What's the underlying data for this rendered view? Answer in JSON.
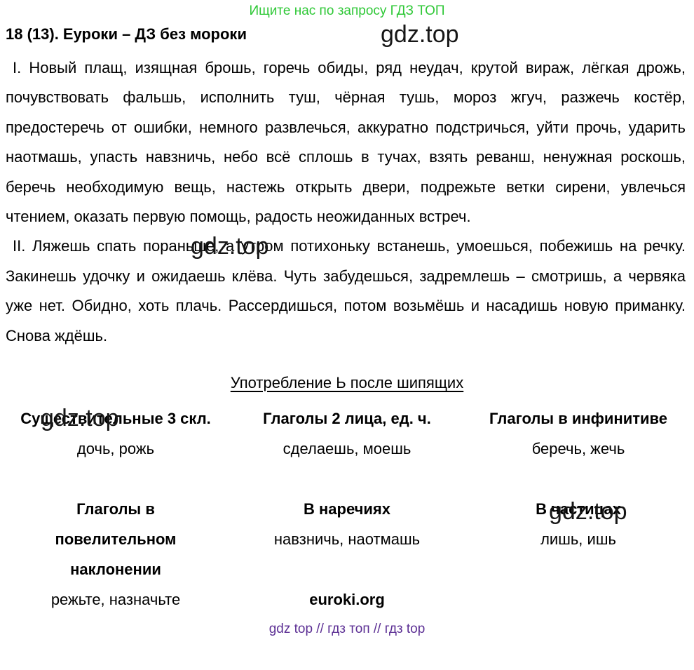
{
  "colors": {
    "promo_green": "#2fc837",
    "tags_purple": "#5c2f94",
    "text_black": "#000000",
    "watermark_gray": "#161616"
  },
  "header": {
    "promo": "Ищите нас по запросу ГДЗ ТОП"
  },
  "title": "18 (13). Еуроки – ДЗ без мороки",
  "watermarks": {
    "w1": "gdz.top",
    "w2": "gdz.top",
    "w3": "gdz.top",
    "w4": "gdz.top"
  },
  "paragraphs": {
    "p1": "I. Новый плащ, изящная брошь, горечь обиды, ряд неудач, крутой вираж, лёгкая дрожь, почувствовать фальшь, исполнить туш, чёрная тушь, мороз жгуч, разжечь костёр, предостеречь от ошибки, немного развлечься, аккуратно подстричься, уйти прочь, ударить наотмашь, упасть навзничь, небо всё сплошь в тучах, взять реванш, ненужная роскошь, беречь необходимую вещь, настежь открыть двери, подрежьте ветки сирени, увлечься чтением, оказать первую помощь, радость неожиданных встреч.",
    "p2": "II. Ляжешь спать пораньше, а утром потихоньку встанешь, умоешься, побежишь на речку. Закинешь удочку и ожидаешь клёва. Чуть забудешься, задремлешь – смотришь, а червяка уже нет. Обидно, хоть плачь. Рассердишься, потом возьмёшь и насадишь новую приманку. Снова ждёшь."
  },
  "table": {
    "caption": "Употребление Ь после шипящих",
    "row1": {
      "headers": [
        "Существительные 3 скл.",
        "Глаголы 2 лица, ед. ч.",
        "Глаголы в инфинитиве"
      ],
      "values": [
        "дочь, рожь",
        "сделаешь, моешь",
        "беречь, жечь"
      ]
    },
    "row2": {
      "headers": [
        "Глаголы в повелительном наклонении",
        "В наречиях",
        "В частицах"
      ],
      "values": [
        "режьте, назначьте",
        "навзничь, наотмашь",
        "лишь, ишь"
      ]
    }
  },
  "footer": {
    "site": "euroki.org",
    "tags": "gdz top  //  гдз топ  //  гдз top"
  }
}
